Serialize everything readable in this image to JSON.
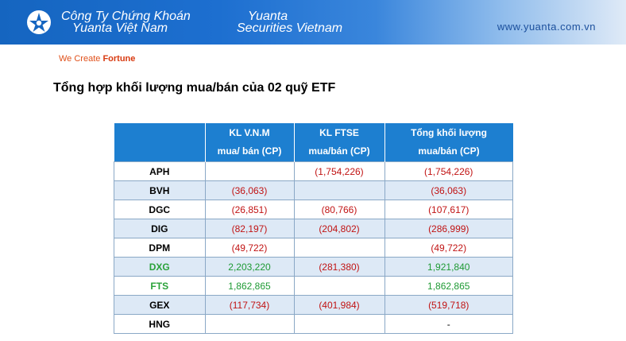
{
  "header": {
    "company_vn_line1": "Công Ty Chứng Khoán",
    "company_vn_line2": "Yuanta Việt Nam",
    "company_en_line1": "Yuanta",
    "company_en_line2": "Securities Vietnam",
    "website": "www.yuanta.com.vn",
    "slogan_prefix": "We Create",
    "slogan_bold": "Fortune"
  },
  "title": "Tổng hợp khối lượng mua/bán của 02 quỹ ETF",
  "table": {
    "headers": [
      [
        "",
        ""
      ],
      [
        "KL V.N.M",
        "mua/ bán (CP)"
      ],
      [
        "KL FTSE",
        "mua/bán (CP)"
      ],
      [
        "Tổng khối lượng",
        "mua/bán (CP)"
      ]
    ],
    "rows": [
      {
        "code": "APH",
        "vnm": "",
        "ftse": "(1,754,226)",
        "total": "(1,754,226)"
      },
      {
        "code": "BVH",
        "vnm": "(36,063)",
        "ftse": "",
        "total": "(36,063)"
      },
      {
        "code": "DGC",
        "vnm": "(26,851)",
        "ftse": "(80,766)",
        "total": "(107,617)"
      },
      {
        "code": "DIG",
        "vnm": "(82,197)",
        "ftse": "(204,802)",
        "total": "(286,999)"
      },
      {
        "code": "DPM",
        "vnm": "(49,722)",
        "ftse": "",
        "total": "(49,722)"
      },
      {
        "code": "DXG",
        "vnm": "2,203,220",
        "ftse": "(281,380)",
        "total": "1,921,840"
      },
      {
        "code": "FTS",
        "vnm": "1,862,865",
        "ftse": "",
        "total": "1,862,865"
      },
      {
        "code": "GEX",
        "vnm": "(117,734)",
        "ftse": "(401,984)",
        "total": "(519,718)"
      },
      {
        "code": "HNG",
        "vnm": "",
        "ftse": "",
        "total": "-"
      }
    ]
  },
  "colors": {
    "header_blue": "#1d7fd0",
    "negative": "#c11313",
    "positive": "#1e9a34",
    "row_alt": "#dde9f6"
  }
}
